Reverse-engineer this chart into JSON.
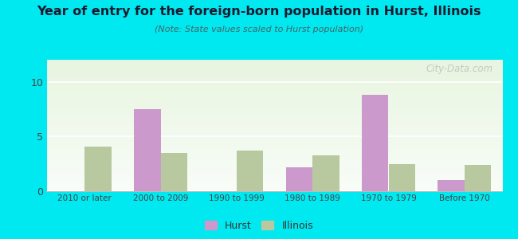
{
  "title": "Year of entry for the foreign-born population in Hurst, Illinois",
  "subtitle": "(Note: State values scaled to Hurst population)",
  "categories": [
    "2010 or later",
    "2000 to 2009",
    "1990 to 1999",
    "1980 to 1989",
    "1970 to 1979",
    "Before 1970"
  ],
  "hurst_values": [
    0,
    7.5,
    0,
    2.2,
    8.8,
    1.0
  ],
  "illinois_values": [
    4.1,
    3.5,
    3.7,
    3.3,
    2.5,
    2.4
  ],
  "hurst_color": "#cc99cc",
  "illinois_color": "#b8c9a0",
  "background_outer": "#00e8f0",
  "background_chart_top": "#f0f8ff",
  "background_chart_bottom": "#d8ecc8",
  "ylim": [
    0,
    12
  ],
  "yticks": [
    0,
    5,
    10
  ],
  "bar_width": 0.35,
  "legend_labels": [
    "Hurst",
    "Illinois"
  ],
  "watermark": "City-Data.com"
}
